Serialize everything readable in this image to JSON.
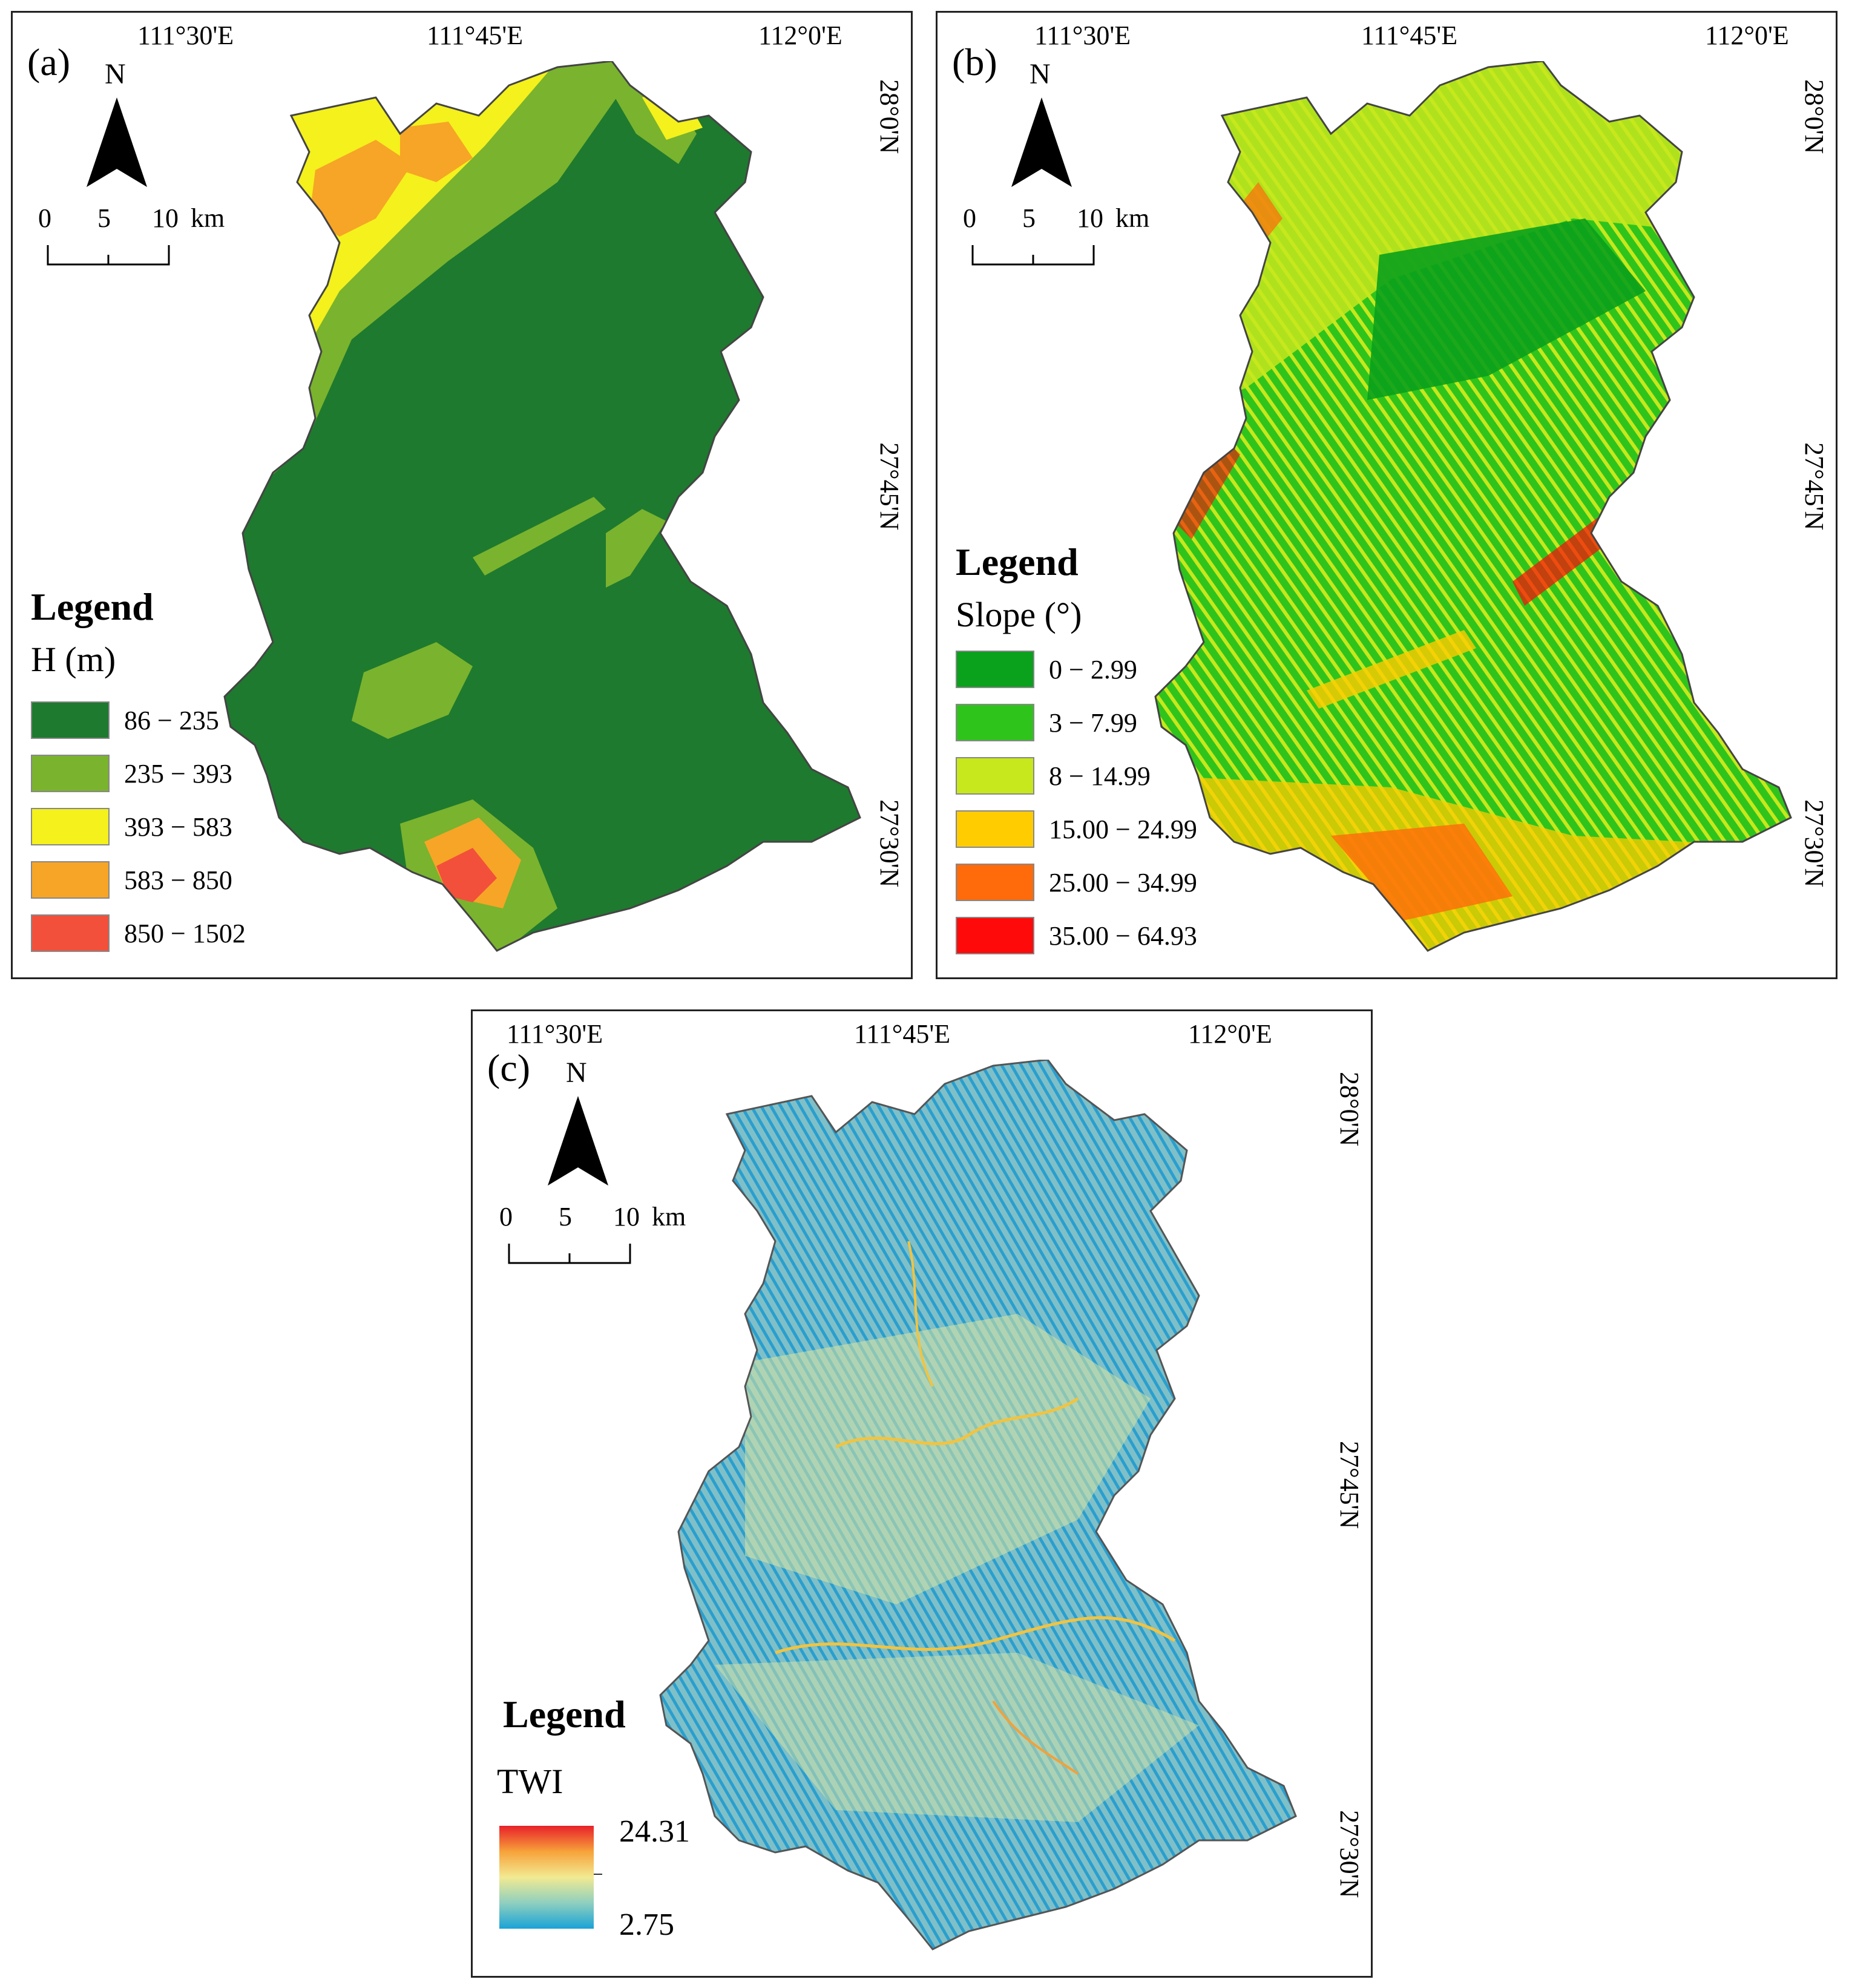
{
  "panels": {
    "a": {
      "letter": "(a)",
      "lon_ticks": [
        "111°30'E",
        "111°45'E",
        "112°0'E"
      ],
      "lat_ticks": [
        "28°0'N",
        "27°45'N",
        "27°30'N"
      ],
      "north": "N",
      "scale": [
        "0",
        "5",
        "10",
        "km"
      ],
      "legend_title": "Legend",
      "legend_subtitle": "H (m)",
      "classes": [
        {
          "label": "86 − 235",
          "color": "#1e7a2e"
        },
        {
          "label": "235 − 393",
          "color": "#7ab32e"
        },
        {
          "label": "393 − 583",
          "color": "#f4f11c"
        },
        {
          "label": "583 − 850",
          "color": "#f7a526"
        },
        {
          "label": "850 − 1502",
          "color": "#f2503a"
        }
      ]
    },
    "b": {
      "letter": "(b)",
      "lon_ticks": [
        "111°30'E",
        "111°45'E",
        "112°0'E"
      ],
      "lat_ticks": [
        "28°0'N",
        "27°45'N",
        "27°30'N"
      ],
      "north": "N",
      "scale": [
        "0",
        "5",
        "10",
        "km"
      ],
      "legend_title": "Legend",
      "legend_subtitle": "Slope (°)",
      "classes": [
        {
          "label": "0 − 2.99",
          "color": "#0aa11c"
        },
        {
          "label": "3 − 7.99",
          "color": "#2fc41c"
        },
        {
          "label": "8 − 14.99",
          "color": "#c6e81c"
        },
        {
          "label": "15.00 − 24.99",
          "color": "#ffcc00"
        },
        {
          "label": "25.00 − 34.99",
          "color": "#ff6a0a"
        },
        {
          "label": "35.00 − 64.93",
          "color": "#ff0a0a"
        }
      ]
    },
    "c": {
      "letter": "(c)",
      "lon_ticks": [
        "111°30'E",
        "111°45'E",
        "112°0'E"
      ],
      "lat_ticks": [
        "28°0'N",
        "27°45'N",
        "27°30'N"
      ],
      "north": "N",
      "scale": [
        "0",
        "5",
        "10",
        "km"
      ],
      "legend_title": "Legend",
      "legend_subtitle": "TWI",
      "ramp_max": "24.31",
      "ramp_min": "2.75",
      "ramp_colors": [
        "#e8202a",
        "#f7a23a",
        "#f2ea92",
        "#8fcfbf",
        "#1aa3d6"
      ]
    }
  }
}
